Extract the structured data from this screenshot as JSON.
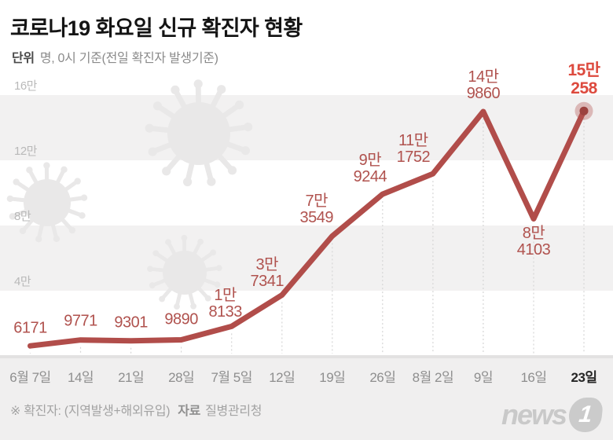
{
  "header": {
    "title": "코로나19 화요일 신규 확진자 현황",
    "unit_label": "단위",
    "unit_text": "명, 0시 기준(전일 확진자 발생기준)"
  },
  "chart_data": {
    "type": "line",
    "title": "코로나19 화요일 신규 확진자 현황",
    "categories": [
      "6월 7일",
      "14일",
      "21일",
      "28일",
      "7월 5일",
      "12일",
      "19일",
      "26일",
      "8월 2일",
      "9일",
      "16일",
      "23일"
    ],
    "values": [
      6171,
      9771,
      9301,
      9890,
      18133,
      37341,
      73549,
      99244,
      111752,
      149860,
      84103,
      150258
    ],
    "point_labels": [
      [
        "6171"
      ],
      [
        "9771"
      ],
      [
        "9301"
      ],
      [
        "9890"
      ],
      [
        "1만",
        "8133"
      ],
      [
        "3만",
        "7341"
      ],
      [
        "7만",
        "3549"
      ],
      [
        "9만",
        "9244"
      ],
      [
        "11만",
        "1752"
      ],
      [
        "14만",
        "9860"
      ],
      [
        "8만",
        "4103"
      ],
      [
        "15만",
        "258"
      ]
    ],
    "y_ticks": [
      {
        "value": 160000,
        "label": "16만"
      },
      {
        "value": 120000,
        "label": "12만"
      },
      {
        "value": 80000,
        "label": "8만"
      },
      {
        "value": 40000,
        "label": "4만"
      }
    ],
    "ylim": [
      0,
      175000
    ],
    "xlabel": "",
    "ylabel": "명",
    "legend": "none",
    "grid": "dashed-vertical",
    "line_color": "#b14d4a",
    "label_color": "#b0524e",
    "highlight_color": "#dd4a3e",
    "marker_dot_color": "#9c413e",
    "marker_halo_color": "rgba(177,77,74,0.35)",
    "band_color": "#f2f1f1",
    "axis_band_color": "#f0efef",
    "grid_color": "#d6d6d6",
    "tick_color": "#b9b9b9",
    "highlighted_point_index": 11
  },
  "footer": {
    "note_prefix": "※ 확진자: (지역발생+해외유입)",
    "source_label": "자료",
    "source": "질병관리청"
  },
  "logo": {
    "text": "news",
    "numeral": "1"
  }
}
